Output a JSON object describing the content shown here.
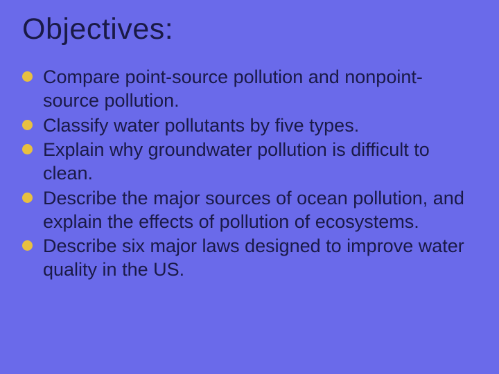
{
  "background_color": "#6a6aea",
  "text_color": "#1a1a47",
  "bullet_color": "#e8c040",
  "title": {
    "text": "Objectives:",
    "fontsize": 43
  },
  "bullets": [
    {
      "text": "Compare point-source pollution and nonpoint-source pollution."
    },
    {
      "text": "Classify water pollutants by five types."
    },
    {
      "text": "Explain why groundwater pollution is difficult to clean."
    },
    {
      "text": "Describe the major sources of ocean pollution, and explain the effects of pollution of ecosystems."
    },
    {
      "text": "Describe six major laws designed to improve water quality in the US."
    }
  ],
  "bullet_fontsize": 27
}
